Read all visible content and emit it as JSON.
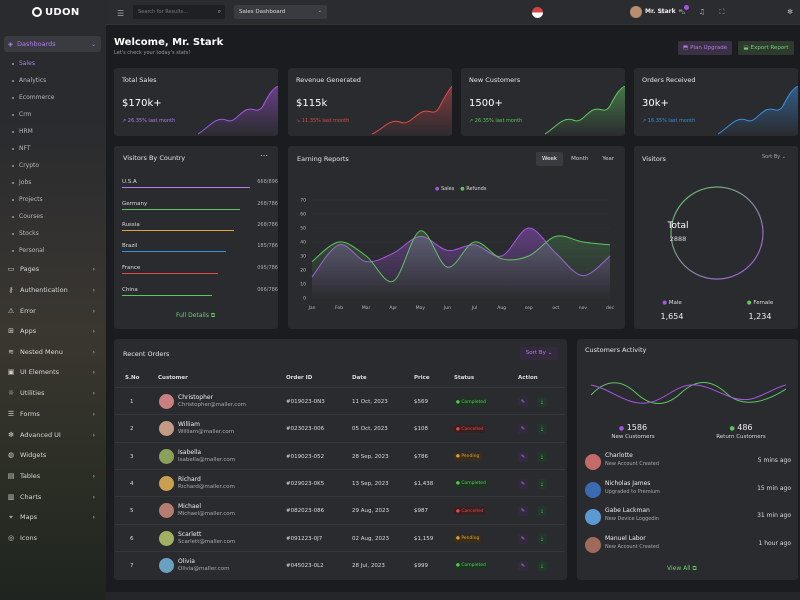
{
  "brand": "UDON",
  "search": {
    "placeholder": "Search for Results..."
  },
  "dashboard_select": "Sales Dashboard",
  "user": {
    "name": "Mr. Stark"
  },
  "sidebar": {
    "main": "Dashboards",
    "subitems": [
      "Sales",
      "Analytics",
      "Ecommerce",
      "Crm",
      "HRM",
      "NFT",
      "Crypto",
      "Jobs",
      "Projects",
      "Courses",
      "Stocks",
      "Personal"
    ],
    "items": [
      {
        "label": "Pages",
        "icon": "page-icon",
        "arrow": true
      },
      {
        "label": "Authentication",
        "icon": "key-icon",
        "arrow": true
      },
      {
        "label": "Error",
        "icon": "warning-icon",
        "arrow": true
      },
      {
        "label": "Apps",
        "icon": "apps-icon",
        "arrow": true
      },
      {
        "label": "Nested Menu",
        "icon": "layers-icon",
        "arrow": true
      },
      {
        "label": "UI Elements",
        "icon": "box-icon",
        "arrow": true
      },
      {
        "label": "Utilities",
        "icon": "bulb-icon",
        "arrow": true
      },
      {
        "label": "Forms",
        "icon": "form-icon",
        "arrow": true
      },
      {
        "label": "Advanced UI",
        "icon": "gear-icon",
        "arrow": true
      },
      {
        "label": "Widgets",
        "icon": "widget-icon",
        "arrow": false
      },
      {
        "label": "Tables",
        "icon": "table-icon",
        "arrow": true
      },
      {
        "label": "Charts",
        "icon": "chart-icon",
        "arrow": true
      },
      {
        "label": "Maps",
        "icon": "map-icon",
        "arrow": true
      },
      {
        "label": "Icons",
        "icon": "icons-icon",
        "arrow": false
      }
    ]
  },
  "header": {
    "welcome": "Welcome, Mr. Stark",
    "subtitle": "Let's check your today's stats!",
    "plan_btn": "Plan Upgrade",
    "export_btn": "Export Report"
  },
  "stats": [
    {
      "title": "Total Sales",
      "value": "$170k+",
      "change": "26.35% last month",
      "color": "#b17ee6"
    },
    {
      "title": "Revenue Generated",
      "value": "$115k",
      "change": "11.35% last month",
      "color": "#e04a4a"
    },
    {
      "title": "New Customers",
      "value": "1500+",
      "change": "26.35% last month",
      "color": "#5ec55e"
    },
    {
      "title": "Orders Received",
      "value": "30k+",
      "change": "16.35% last month",
      "color": "#3a8ee0"
    }
  ],
  "visitors_by_country": {
    "title": "Visitors By Country",
    "rows": [
      {
        "country": "U.S.A",
        "value": "668/896",
        "color": "#b17ee6"
      },
      {
        "country": "Germany",
        "value": "268/786",
        "color": "#5ec55e"
      },
      {
        "country": "Russia",
        "value": "268/786",
        "color": "#e0a23a"
      },
      {
        "country": "Brazil",
        "value": "185/786",
        "color": "#3a8ee0"
      },
      {
        "country": "France",
        "value": "095/786",
        "color": "#e04a4a"
      },
      {
        "country": "China",
        "value": "066/786",
        "color": "#5ec55e"
      }
    ],
    "full_details": "Full Details"
  },
  "earning_reports": {
    "title": "Earning Reports",
    "tabs": [
      "Week",
      "Month",
      "Year"
    ],
    "active_tab": "Week",
    "legend": [
      "Sales",
      "Refunds"
    ]
  },
  "chart_data": {
    "type": "area",
    "title": "Earning Reports",
    "categories": [
      "Jan",
      "Feb",
      "Mar",
      "Apr",
      "May",
      "Jun",
      "Jul",
      "Aug",
      "sep",
      "oct",
      "nov",
      "dec"
    ],
    "ylim": [
      0,
      70
    ],
    "yticks": [
      0,
      10,
      20,
      30,
      40,
      50,
      60,
      70
    ],
    "series": [
      {
        "name": "Sales",
        "color": "#a456e0",
        "values": [
          15,
          38,
          26,
          32,
          44,
          34,
          38,
          30,
          50,
          32,
          16,
          30
        ]
      },
      {
        "name": "Refunds",
        "color": "#5ec55e",
        "values": [
          26,
          40,
          30,
          12,
          48,
          22,
          40,
          28,
          30,
          44,
          40,
          38
        ]
      }
    ]
  },
  "visitors": {
    "title": "Visitors",
    "sort": "Sort By",
    "total_label": "Total",
    "total": "2888",
    "male_label": "Male",
    "male": "1,654",
    "female_label": "Female",
    "female": "1,234"
  },
  "recent_orders": {
    "title": "Recent Orders",
    "sort": "Sort By",
    "headers": [
      "S.No",
      "Customer",
      "Order ID",
      "Date",
      "Price",
      "Status",
      "Action"
    ],
    "rows": [
      {
        "no": "1",
        "name": "Christopher",
        "email": "Christopher@maller.com",
        "order": "#019023-0N3",
        "date": "11 Oct, 2023",
        "price": "$569",
        "status": "Completed",
        "av": "#c98080"
      },
      {
        "no": "2",
        "name": "William",
        "email": "William@maller.com",
        "order": "#023023-006",
        "date": "05 Oct, 2023",
        "price": "$108",
        "status": "Cancelled",
        "av": "#c49a84"
      },
      {
        "no": "3",
        "name": "Isabella",
        "email": "Isabella@maller.com",
        "order": "#019023-052",
        "date": "28 Sep, 2023",
        "price": "$786",
        "status": "Pending",
        "av": "#8aa15a"
      },
      {
        "no": "4",
        "name": "Richard",
        "email": "Richard@maller.com",
        "order": "#029023-0K5",
        "date": "13 Sep, 2023",
        "price": "$1,438",
        "status": "Completed",
        "av": "#c9a04f"
      },
      {
        "no": "5",
        "name": "Michael",
        "email": "Michael@maller.com",
        "order": "#082023-086",
        "date": "29 Aug, 2023",
        "price": "$987",
        "status": "Cancelled",
        "av": "#b77c70"
      },
      {
        "no": "6",
        "name": "Scarlett",
        "email": "Scarlett@maller.com",
        "order": "#091223-0J7",
        "date": "02 Aug, 2023",
        "price": "$1,159",
        "status": "Pending",
        "av": "#a0b060"
      },
      {
        "no": "7",
        "name": "Olivia",
        "email": "Olivia@maller.com",
        "order": "#045023-0L2",
        "date": "28 Jul, 2023",
        "price": "$999",
        "status": "Completed",
        "av": "#6aa0c0"
      }
    ]
  },
  "customers_activity": {
    "title": "Customers Activity",
    "new_count": "1586",
    "new_label": "New Customers",
    "return_count": "486",
    "return_label": "Return Customers",
    "items": [
      {
        "name": "Charlotte",
        "desc": "New Account Created",
        "time": "5 mins ago",
        "av": "#c46a6a"
      },
      {
        "name": "Nicholas James",
        "desc": "Upgraded to Premium",
        "time": "15 min ago",
        "av": "#3a6ab0"
      },
      {
        "name": "Gabe Lackman",
        "desc": "New Device Loggedin",
        "time": "31 min ago",
        "av": "#5a9ad0"
      },
      {
        "name": "Manuel Labor",
        "desc": "New Account Created",
        "time": "1 hour ago",
        "av": "#a06a5a"
      }
    ],
    "view_all": "View All"
  }
}
